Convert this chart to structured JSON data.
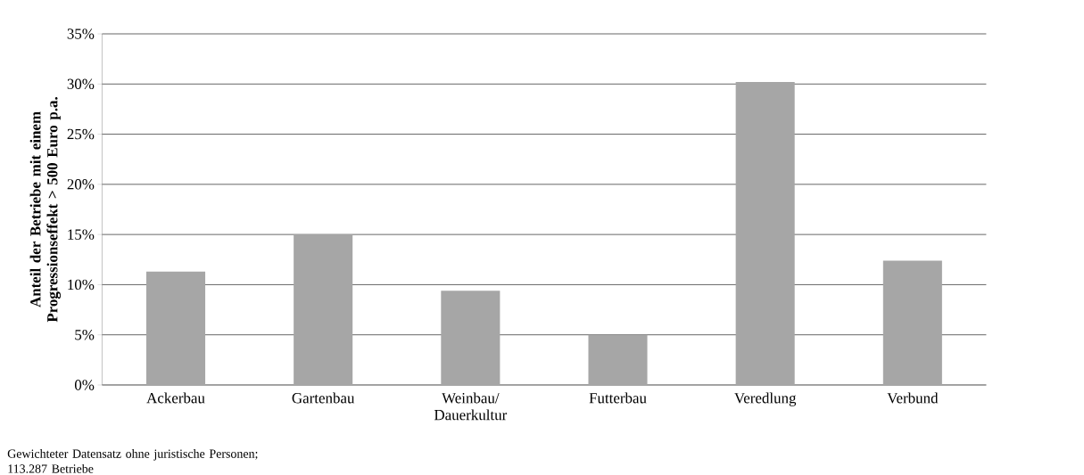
{
  "chart_data": {
    "type": "bar",
    "ylabel": "Anteil der Betriebe mit einem Progressionseffekt > 500 Euro p.a.",
    "categories": [
      "Ackerbau",
      "Gartenbau",
      "Weinbau/ Dauerkultur",
      "Futterbau",
      "Veredlung",
      "Verbund"
    ],
    "values": [
      11.3,
      15.0,
      9.4,
      5.0,
      30.2,
      12.4
    ],
    "color": "#a6a6a6",
    "ylim": [
      0,
      35
    ],
    "yticks": [
      {
        "value": 0,
        "label": "0%"
      },
      {
        "value": 5,
        "label": "5%"
      },
      {
        "value": 10,
        "label": "10%"
      },
      {
        "value": 15,
        "label": "15%"
      },
      {
        "value": 20,
        "label": "20%"
      },
      {
        "value": 25,
        "label": "25%"
      },
      {
        "value": 30,
        "label": "30%"
      },
      {
        "value": 35,
        "label": "35%"
      }
    ],
    "grid": "y",
    "annotations": [
      "Gewichteter Datensatz ohne juristische Personen; 113.287 Betriebe"
    ]
  }
}
